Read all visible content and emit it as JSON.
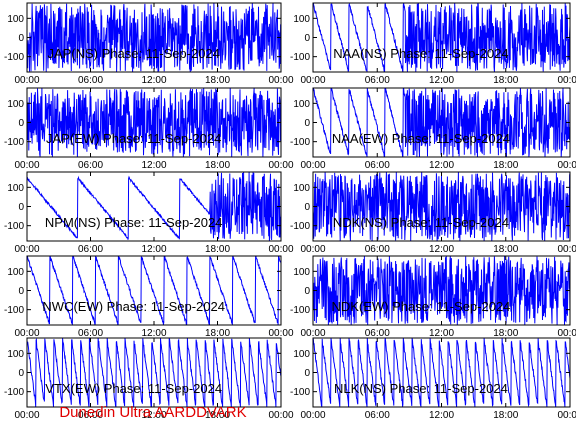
{
  "footer": "Dunedin Ultra AARDDVARK",
  "colors": {
    "trace": "#0000ff",
    "frame": "#000000",
    "footer": "#e00000"
  },
  "chart_data": [
    {
      "type": "line",
      "title": "JAP(NS) Phase: 11-Sep-2024",
      "x_ticks": [
        "00:00",
        "06:00",
        "12:00",
        "18:00",
        "00:00"
      ],
      "y_ticks": [
        "100",
        "0",
        "-100"
      ],
      "ylim": [
        -180,
        180
      ],
      "pattern": "dense-phase"
    },
    {
      "type": "line",
      "title": "NAA(NS) Phase: 11-Sep-2024",
      "x_ticks": [
        "00:00",
        "06:00",
        "12:00",
        "18:00",
        "00:00"
      ],
      "y_ticks": [
        "100",
        "0",
        "-100"
      ],
      "ylim": [
        -180,
        180
      ],
      "pattern": "sawtooth-then-dense"
    },
    {
      "type": "line",
      "title": "JAP(EW) Phase: 11-Sep-2024",
      "x_ticks": [
        "00:00",
        "06:00",
        "12:00",
        "18:00",
        "00:00"
      ],
      "y_ticks": [
        "100",
        "0",
        "-100"
      ],
      "ylim": [
        -180,
        180
      ],
      "pattern": "dense-phase"
    },
    {
      "type": "line",
      "title": "NAA(EW) Phase: 11-Sep-2024",
      "x_ticks": [
        "00:00",
        "06:00",
        "12:00",
        "18:00",
        "00:00"
      ],
      "y_ticks": [
        "100",
        "0",
        "-100"
      ],
      "ylim": [
        -180,
        180
      ],
      "pattern": "sawtooth-then-dense"
    },
    {
      "type": "line",
      "title": "NPM(NS) Phase: 11-Sep-2024",
      "x_ticks": [
        "00:00",
        "06:00",
        "12:00",
        "18:00",
        "00:00"
      ],
      "y_ticks": [
        "100",
        "0",
        "-100"
      ],
      "ylim": [
        -180,
        180
      ],
      "pattern": "slow-drift-then-dense"
    },
    {
      "type": "line",
      "title": "NDK(NS) Phase: 11-Sep-2024",
      "x_ticks": [
        "00:00",
        "06:00",
        "12:00",
        "18:00",
        "00:00"
      ],
      "y_ticks": [
        "100",
        "0",
        "-100"
      ],
      "ylim": [
        -180,
        180
      ],
      "pattern": "dense-phase"
    },
    {
      "type": "line",
      "title": "NWC(EW) Phase: 11-Sep-2024",
      "x_ticks": [
        "00:00",
        "06:00",
        "12:00",
        "18:00",
        "00:00"
      ],
      "y_ticks": [
        "100",
        "0",
        "-100"
      ],
      "ylim": [
        -180,
        180
      ],
      "pattern": "sawtooth"
    },
    {
      "type": "line",
      "title": "NDK(EW) Phase: 11-Sep-2024",
      "x_ticks": [
        "00:00",
        "06:00",
        "12:00",
        "18:00",
        "00:00"
      ],
      "y_ticks": [
        "100",
        "0",
        "-100"
      ],
      "ylim": [
        -180,
        180
      ],
      "pattern": "dense-phase"
    },
    {
      "type": "line",
      "title": "VTX(EW) Phase: 11-Sep-2024",
      "x_ticks": [
        "00:00",
        "06:00",
        "12:00",
        "18:00",
        "00:00"
      ],
      "y_ticks": [
        "100",
        "0",
        "-100"
      ],
      "ylim": [
        -180,
        180
      ],
      "pattern": "fast-sawtooth"
    },
    {
      "type": "line",
      "title": "NLK(NS) Phase: 11-Sep-2024",
      "x_ticks": [
        "00:00",
        "06:00",
        "12:00",
        "18:00",
        "00:00"
      ],
      "y_ticks": [
        "100",
        "0",
        "-100"
      ],
      "ylim": [
        -180,
        180
      ],
      "pattern": "fast-sawtooth"
    }
  ]
}
